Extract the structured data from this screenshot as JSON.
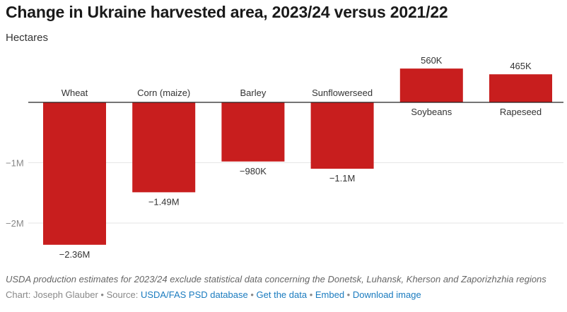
{
  "header": {
    "title": "Change in Ukraine harvested area, 2023/24 versus 2021/22",
    "subtitle": "Hectares"
  },
  "chart_data": {
    "type": "bar",
    "title": "Change in Ukraine harvested area, 2023/24 versus 2021/22",
    "ylabel": "Hectares",
    "xlabel": "",
    "categories": [
      "Wheat",
      "Corn (maize)",
      "Barley",
      "Sunflowerseed",
      "Soybeans",
      "Rapeseed"
    ],
    "values": [
      -2360000,
      -1490000,
      -980000,
      -1100000,
      560000,
      465000
    ],
    "value_labels": [
      "−2.36M",
      "−1.49M",
      "−980K",
      "−1.1M",
      "560K",
      "465K"
    ],
    "yticks": [
      -1000000,
      -2000000
    ],
    "ytick_labels": [
      "−1M",
      "−2M"
    ],
    "ylim": [
      -2500000,
      600000
    ],
    "grid": true,
    "bar_color": "#c81e1e"
  },
  "footer": {
    "note": "USDA production estimates for 2023/24 exclude statistical data concerning the Donetsk, Luhansk, Kherson and Zaporizhzhia regions",
    "credit": "Chart: Joseph Glauber • Source: ",
    "source_link": "USDA/FAS PSD database",
    "sep1": " • ",
    "get_data": "Get the data",
    "sep2": " • ",
    "embed": "Embed",
    "sep3": " • ",
    "download": "Download image"
  }
}
